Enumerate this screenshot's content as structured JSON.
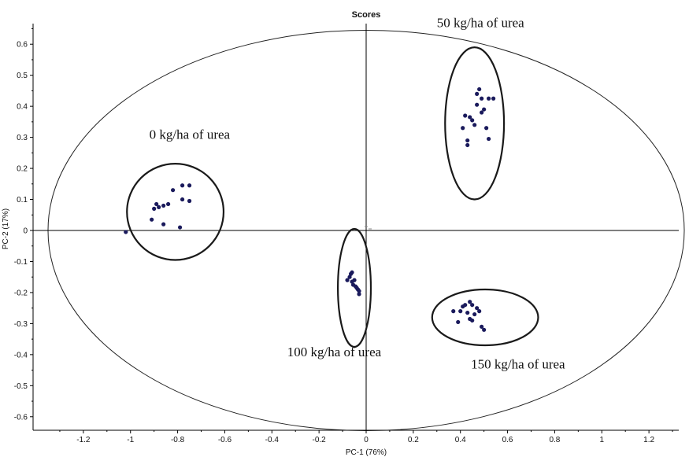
{
  "chart_data": {
    "type": "scatter",
    "title": "Scores",
    "xlabel": "PC-1 (76%)",
    "ylabel": "PC-2 (17%)",
    "xlim": [
      -1.37,
      1.37
    ],
    "ylim": [
      -0.655,
      0.655
    ],
    "x_ticks": [
      -1.2,
      -1,
      -0.8,
      -0.6,
      -0.4,
      -0.2,
      0,
      0.2,
      0.4,
      0.6,
      0.8,
      1,
      1.2
    ],
    "x_tick_labels": [
      "-1.2",
      "-1",
      "-0.8",
      "-0.6",
      "-0.4",
      "-0.2",
      "0",
      "0.2",
      "0.4",
      "0.6",
      "0.8",
      "1",
      "1.2"
    ],
    "y_ticks": [
      0.6,
      0.5,
      0.4,
      0.3,
      0.2,
      0.1,
      0,
      -0.1,
      -0.2,
      -0.3,
      -0.4,
      -0.5,
      -0.6
    ],
    "y_tick_labels": [
      "0.6",
      "0.5",
      "0.4",
      "0.3",
      "0.2",
      "0.1",
      "0",
      "-0.1",
      "-0.2",
      "-0.3",
      "-0.4",
      "-0.5",
      "-0.6"
    ],
    "grid": false,
    "point_color": "#1a1a5c",
    "hotelling_ellipse": {
      "cx": 0,
      "cy": 0,
      "rx": 1.35,
      "ry": 0.645
    },
    "groups": [
      {
        "label": "0 kg/ha of urea",
        "ellipse": {
          "cx": -0.81,
          "cy": 0.06,
          "rx": 0.205,
          "ry": 0.155
        },
        "label_at": [
          -0.92,
          0.295
        ],
        "points": [
          [
            -1.02,
            -0.005
          ],
          [
            -0.91,
            0.035
          ],
          [
            -0.9,
            0.07
          ],
          [
            -0.89,
            0.085
          ],
          [
            -0.88,
            0.075
          ],
          [
            -0.86,
            0.08
          ],
          [
            -0.86,
            0.02
          ],
          [
            -0.84,
            0.085
          ],
          [
            -0.82,
            0.13
          ],
          [
            -0.79,
            0.01
          ],
          [
            -0.78,
            0.1
          ],
          [
            -0.78,
            0.145
          ],
          [
            -0.75,
            0.145
          ],
          [
            -0.75,
            0.095
          ]
        ]
      },
      {
        "label": "50 kg/ha of urea",
        "ellipse": {
          "cx": 0.46,
          "cy": 0.345,
          "rx": 0.125,
          "ry": 0.245
        },
        "label_at": [
          0.3,
          0.655
        ],
        "points": [
          [
            0.41,
            0.33
          ],
          [
            0.42,
            0.37
          ],
          [
            0.43,
            0.29
          ],
          [
            0.44,
            0.365
          ],
          [
            0.43,
            0.275
          ],
          [
            0.45,
            0.355
          ],
          [
            0.46,
            0.34
          ],
          [
            0.47,
            0.405
          ],
          [
            0.47,
            0.44
          ],
          [
            0.48,
            0.455
          ],
          [
            0.49,
            0.425
          ],
          [
            0.5,
            0.39
          ],
          [
            0.49,
            0.38
          ],
          [
            0.51,
            0.33
          ],
          [
            0.52,
            0.295
          ],
          [
            0.52,
            0.425
          ],
          [
            0.54,
            0.425
          ]
        ]
      },
      {
        "label": "100 kg/ha of urea",
        "ellipse": {
          "cx": -0.05,
          "cy": -0.185,
          "rx": 0.07,
          "ry": 0.19
        },
        "label_at": [
          -0.335,
          -0.405
        ],
        "points": [
          [
            -0.08,
            -0.16
          ],
          [
            -0.07,
            -0.15
          ],
          [
            -0.065,
            -0.14
          ],
          [
            -0.06,
            -0.165
          ],
          [
            -0.055,
            -0.175
          ],
          [
            -0.05,
            -0.16
          ],
          [
            -0.045,
            -0.18
          ],
          [
            -0.04,
            -0.185
          ],
          [
            -0.035,
            -0.19
          ],
          [
            -0.03,
            -0.195
          ],
          [
            -0.03,
            -0.205
          ],
          [
            -0.06,
            -0.135
          ]
        ]
      },
      {
        "label": "150 kg/ha of urea",
        "ellipse": {
          "cx": 0.505,
          "cy": -0.28,
          "rx": 0.225,
          "ry": 0.09
        },
        "label_at": [
          0.445,
          -0.445
        ],
        "points": [
          [
            0.37,
            -0.26
          ],
          [
            0.39,
            -0.295
          ],
          [
            0.4,
            -0.26
          ],
          [
            0.41,
            -0.245
          ],
          [
            0.42,
            -0.24
          ],
          [
            0.43,
            -0.265
          ],
          [
            0.44,
            -0.23
          ],
          [
            0.45,
            -0.24
          ],
          [
            0.45,
            -0.29
          ],
          [
            0.46,
            -0.27
          ],
          [
            0.47,
            -0.25
          ],
          [
            0.48,
            -0.26
          ],
          [
            0.49,
            -0.31
          ],
          [
            0.5,
            -0.32
          ],
          [
            0.44,
            -0.285
          ]
        ]
      }
    ]
  }
}
